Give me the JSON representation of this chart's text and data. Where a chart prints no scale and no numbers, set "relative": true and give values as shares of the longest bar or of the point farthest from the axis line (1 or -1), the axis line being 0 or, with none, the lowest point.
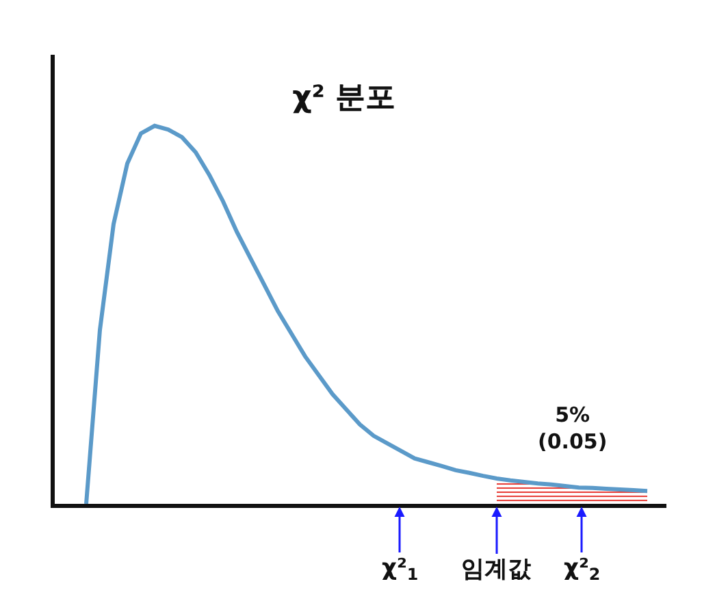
{
  "chart_data": {
    "type": "line",
    "title": "χ² 분포",
    "relative": true,
    "categories": [
      null,
      null,
      null,
      null,
      null,
      null,
      null,
      null,
      null,
      null,
      null,
      null,
      null,
      null,
      null,
      null,
      null,
      null,
      null,
      null,
      null,
      null,
      null,
      null,
      null,
      null,
      null,
      null,
      null,
      null,
      null,
      null,
      null,
      null,
      null,
      null,
      null,
      null,
      null,
      null,
      null,
      null
    ],
    "series": [
      {
        "type": "area",
        "color": "#e8403a",
        "values": [
          null,
          null,
          null,
          null,
          null,
          null,
          null,
          null,
          null,
          null,
          null,
          null,
          null,
          null,
          null,
          null,
          null,
          null,
          null,
          null,
          null,
          null,
          null,
          null,
          null,
          null,
          null,
          null,
          null,
          null,
          0.067,
          0.062,
          0.058,
          0.054,
          0.051,
          0.047,
          0.043,
          0.042,
          0.04,
          0.038,
          0.036,
          0.034
        ]
      },
      {
        "color": "#5b9ac9",
        "values": [
          0,
          0.46,
          0.74,
          0.9,
          0.98,
          1.0,
          0.99,
          0.97,
          0.93,
          0.87,
          0.8,
          0.72,
          0.65,
          0.58,
          0.51,
          0.45,
          0.39,
          0.34,
          0.29,
          0.25,
          0.21,
          0.18,
          0.16,
          0.14,
          0.12,
          0.11,
          0.1,
          0.089,
          0.082,
          0.074,
          0.067,
          0.062,
          0.058,
          0.054,
          0.051,
          0.047,
          0.043,
          0.042,
          0.04,
          0.038,
          0.036,
          0.034
        ]
      }
    ],
    "annotations": [
      "5%\n(0.05)",
      "χ²$_{1}$",
      "임계값",
      "χ²$_{2}$"
    ],
    "marker": "none",
    "line_style": "solid"
  }
}
